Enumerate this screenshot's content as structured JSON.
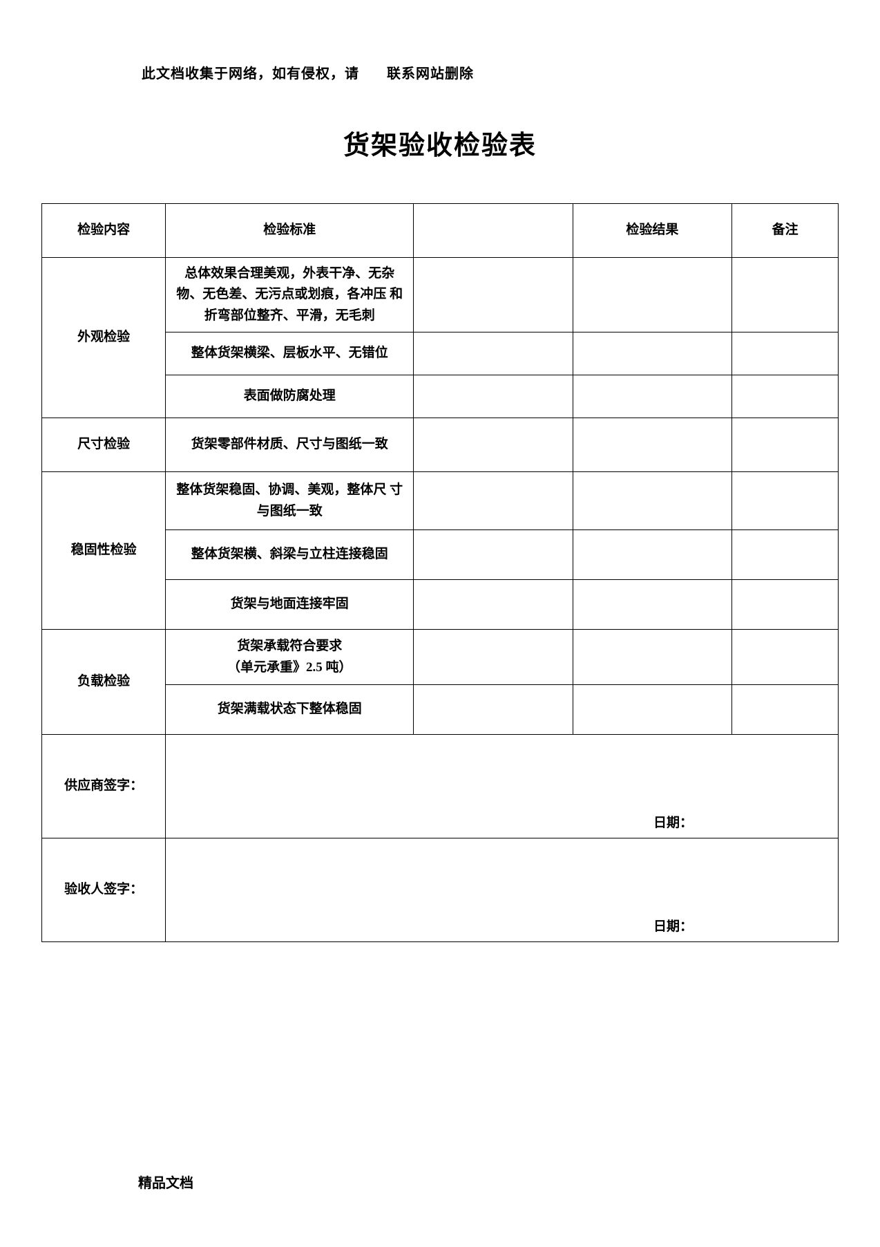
{
  "notice": {
    "part1": "此文档收集于网络，如有侵权，请",
    "part2": "联系网站删除"
  },
  "title": "货架验收检验表",
  "headers": {
    "content": "检验内容",
    "standard": "检验标准",
    "blank": "",
    "result": "检验结果",
    "note": "备注"
  },
  "sections": {
    "appearance": {
      "label": "外观检验",
      "rows": [
        "总体效果合理美观，外表干净、无杂 物、无色差、无污点或划痕，各冲压 和折弯部位整齐、平滑，无毛刺",
        "整体货架横梁、层板水平、无错位",
        "表面做防腐处理"
      ]
    },
    "dimension": {
      "label": "尺寸检验",
      "rows": [
        "货架零部件材质、尺寸与图纸一致"
      ]
    },
    "stability": {
      "label": "稳固性检验",
      "rows": [
        "整体货架稳固、协调、美观，整体尺 寸与图纸一致",
        "整体货架横、斜梁与立柱连接稳固",
        "货架与地面连接牢固"
      ]
    },
    "load": {
      "label": "负载检验",
      "rows": [
        "货架承载符合要求<br>（单元承重》2.5 吨）",
        "货架满载状态下整体稳固"
      ]
    }
  },
  "signatures": {
    "supplier": "供应商签字：",
    "inspector": "验收人签字：",
    "date": "日期："
  },
  "footer": "精品文档",
  "colors": {
    "text": "#000000",
    "border": "#000000",
    "background": "#ffffff"
  },
  "fonts": {
    "title_size": 38,
    "body_size": 19,
    "notice_size": 20
  }
}
